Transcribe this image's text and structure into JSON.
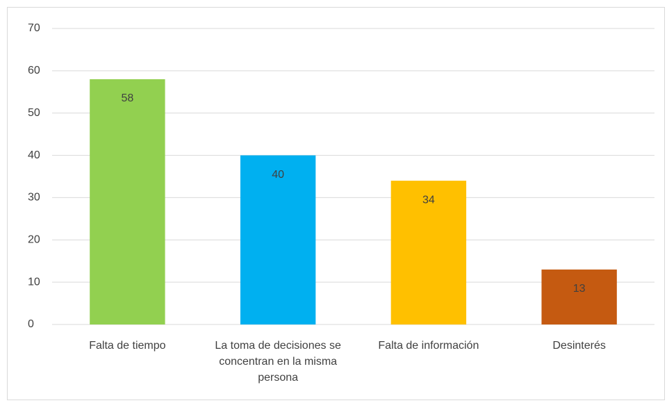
{
  "chart_data": {
    "type": "bar",
    "categories": [
      "Falta de tiempo",
      "La toma de decisiones se concentran en la misma persona",
      "Falta de información",
      "Desinterés"
    ],
    "values": [
      58,
      40,
      34,
      13
    ],
    "colors": [
      "#92d050",
      "#00b0f0",
      "#ffc000",
      "#c55a11"
    ],
    "ylim": [
      0,
      70
    ],
    "yticks": [
      0,
      10,
      20,
      30,
      40,
      50,
      60,
      70
    ],
    "grid": true
  }
}
